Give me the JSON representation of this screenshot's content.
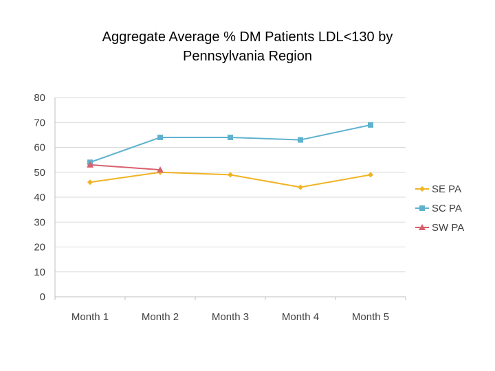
{
  "chart_data": {
    "type": "line",
    "title_line1": "Aggregate Average % DM Patients LDL<130 by",
    "title_line2": "Pennsylvania Region",
    "categories": [
      "Month 1",
      "Month 2",
      "Month 3",
      "Month 4",
      "Month 5"
    ],
    "ylim": [
      0,
      80
    ],
    "yticks": [
      0,
      10,
      20,
      30,
      40,
      50,
      60,
      70,
      80
    ],
    "grid": true,
    "legend_position": "right",
    "series": [
      {
        "name": "SE PA",
        "color": "#F0B323",
        "marker": "diamond",
        "values": [
          46,
          50,
          49,
          44,
          49
        ]
      },
      {
        "name": "SC PA",
        "color": "#5FB2CE",
        "marker": "square",
        "values": [
          54,
          64,
          64,
          63,
          69
        ]
      },
      {
        "name": "SW PA",
        "color": "#D9606E",
        "marker": "triangle",
        "values": [
          53,
          51,
          null,
          null,
          null
        ]
      }
    ]
  }
}
